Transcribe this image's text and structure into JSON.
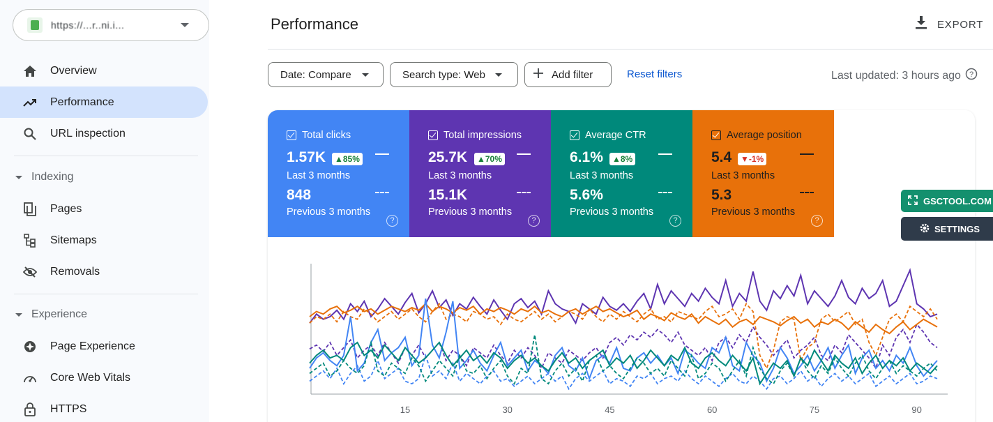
{
  "sidebar": {
    "property": {
      "url": "https://...r..ni.i..."
    },
    "items": [
      {
        "label": "Overview",
        "icon": "home-icon",
        "active": false
      },
      {
        "label": "Performance",
        "icon": "trending-icon",
        "active": true
      },
      {
        "label": "URL inspection",
        "icon": "search-icon",
        "active": false
      }
    ],
    "sections": [
      {
        "label": "Indexing",
        "items": [
          {
            "label": "Pages",
            "icon": "pages-icon"
          },
          {
            "label": "Sitemaps",
            "icon": "sitemap-icon"
          },
          {
            "label": "Removals",
            "icon": "removals-icon"
          }
        ]
      },
      {
        "label": "Experience",
        "items": [
          {
            "label": "Page Experience",
            "icon": "page-experience-icon"
          },
          {
            "label": "Core Web Vitals",
            "icon": "speedometer-icon"
          },
          {
            "label": "HTTPS",
            "icon": "lock-icon"
          }
        ]
      }
    ]
  },
  "header": {
    "title": "Performance",
    "export_label": "EXPORT"
  },
  "filters": {
    "date_label": "Date: Compare",
    "search_type_label": "Search type: Web",
    "add_filter_label": "Add filter",
    "reset_label": "Reset filters",
    "last_updated": "Last updated: 3 hours ago"
  },
  "metrics": [
    {
      "title": "Total clicks",
      "value": "1.57K",
      "change": "▲85%",
      "direction": "up",
      "period": "Last 3 months",
      "prev_value": "848",
      "prev_period": "Previous 3 months",
      "color": "#4285f4"
    },
    {
      "title": "Total impressions",
      "value": "25.7K",
      "change": "▲70%",
      "direction": "up",
      "period": "Last 3 months",
      "prev_value": "15.1K",
      "prev_period": "Previous 3 months",
      "color": "#5e35b1"
    },
    {
      "title": "Average CTR",
      "value": "6.1%",
      "change": "▲8%",
      "direction": "up",
      "period": "Last 3 months",
      "prev_value": "5.6%",
      "prev_period": "Previous 3 months",
      "color": "#00897b"
    },
    {
      "title": "Average position",
      "value": "5.4",
      "change": "▼-1%",
      "direction": "down",
      "period": "Last 3 months",
      "prev_value": "5.3",
      "prev_period": "Previous 3 months",
      "color": "#e8710a"
    }
  ],
  "extension": {
    "brand_label": "GSCTOOL.COM",
    "settings_label": "SETTINGS"
  },
  "chart_data": {
    "type": "line",
    "x_ticks": [
      15,
      30,
      45,
      60,
      75,
      90
    ],
    "xlim": [
      1,
      93
    ],
    "ylim": [
      0,
      100
    ],
    "grid": false,
    "series": [
      {
        "color": "#5e35b1",
        "style": "solid",
        "values": [
          55,
          62,
          58,
          60,
          65,
          58,
          70,
          64,
          72,
          60,
          66,
          74,
          68,
          62,
          71,
          78,
          63,
          70,
          80,
          67,
          73,
          61,
          70,
          66,
          75,
          68,
          62,
          73,
          65,
          58,
          70,
          74,
          67,
          72,
          62,
          80,
          70,
          66,
          64,
          55,
          70,
          66,
          62,
          75,
          68,
          65,
          70,
          64,
          72,
          78,
          66,
          85,
          70,
          80,
          74,
          68,
          78,
          72,
          82,
          75,
          70,
          88,
          68,
          78,
          72,
          95,
          72,
          65,
          80,
          74,
          84,
          76,
          92,
          70,
          80,
          74,
          68,
          76,
          88,
          75,
          70,
          82,
          74,
          78,
          88,
          68,
          72,
          84,
          96,
          70,
          66,
          60,
          62
        ]
      },
      {
        "color": "#5e35b1",
        "style": "dashed",
        "values": [
          35,
          38,
          33,
          40,
          30,
          36,
          42,
          28,
          34,
          38,
          30,
          40,
          32,
          24,
          36,
          30,
          38,
          28,
          34,
          40,
          26,
          34,
          30,
          22,
          36,
          32,
          28,
          38,
          30,
          24,
          34,
          28,
          36,
          30,
          20,
          32,
          28,
          24,
          34,
          30,
          26,
          32,
          36,
          28,
          40,
          44,
          38,
          46,
          42,
          48,
          44,
          50,
          46,
          40,
          48,
          38,
          34,
          30,
          36,
          26,
          40,
          44,
          36,
          46,
          40,
          52,
          44,
          38,
          30,
          36,
          42,
          28,
          34,
          38,
          44,
          30,
          26,
          38,
          32,
          46,
          40,
          34,
          28,
          20,
          38,
          30,
          44,
          50,
          40,
          54,
          48,
          40,
          36
        ]
      },
      {
        "color": "#e8710a",
        "style": "solid",
        "values": [
          60,
          64,
          62,
          66,
          68,
          63,
          65,
          68,
          64,
          66,
          62,
          65,
          68,
          66,
          64,
          67,
          65,
          70,
          64,
          68,
          66,
          63,
          67,
          65,
          68,
          62,
          66,
          64,
          67,
          65,
          62,
          66,
          64,
          68,
          63,
          65,
          62,
          60,
          64,
          66,
          62,
          65,
          68,
          64,
          66,
          63,
          60,
          62,
          65,
          58,
          62,
          60,
          57,
          63,
          60,
          58,
          62,
          55,
          60,
          57,
          54,
          58,
          52,
          56,
          58,
          54,
          60,
          58,
          56,
          53,
          57,
          60,
          55,
          58,
          52,
          56,
          54,
          58,
          55,
          50,
          56,
          52,
          48,
          54,
          50,
          47,
          52,
          56,
          50,
          54,
          58,
          55,
          52
        ]
      },
      {
        "color": "#e8710a",
        "style": "dashed",
        "values": [
          55,
          60,
          58,
          62,
          56,
          64,
          60,
          58,
          66,
          62,
          56,
          60,
          64,
          58,
          62,
          66,
          60,
          56,
          64,
          70,
          58,
          62,
          60,
          56,
          64,
          62,
          58,
          60,
          54,
          62,
          58,
          56,
          60,
          64,
          58,
          62,
          56,
          60,
          64,
          62,
          58,
          66,
          60,
          56,
          62,
          58,
          64,
          60,
          56,
          62,
          66,
          58,
          60,
          56,
          64,
          62,
          60,
          58,
          64,
          68,
          60,
          62,
          66,
          58,
          70,
          64,
          30,
          20,
          34,
          56,
          60,
          58,
          26,
          36,
          40,
          58,
          62,
          56,
          60,
          64,
          54,
          58,
          40,
          30,
          44,
          58,
          62,
          56,
          68,
          64,
          60,
          66,
          58
        ]
      },
      {
        "color": "#4285f4",
        "style": "solid",
        "values": [
          20,
          28,
          32,
          26,
          22,
          30,
          60,
          18,
          24,
          40,
          50,
          26,
          32,
          36,
          44,
          22,
          30,
          74,
          38,
          28,
          48,
          72,
          20,
          26,
          34,
          24,
          18,
          30,
          40,
          22,
          28,
          34,
          18,
          26,
          22,
          16,
          30,
          36,
          22,
          18,
          28,
          12,
          26,
          30,
          24,
          36,
          20,
          18,
          28,
          32,
          24,
          30,
          22,
          28,
          16,
          34,
          30,
          24,
          20,
          36,
          32,
          44,
          22,
          18,
          40,
          30,
          24,
          10,
          20,
          36,
          28,
          16,
          22,
          30,
          18,
          26,
          36,
          20,
          30,
          38,
          16,
          28,
          34,
          20,
          26,
          18,
          30,
          24,
          36,
          22,
          14,
          20,
          26
        ]
      },
      {
        "color": "#4285f4",
        "style": "dashed",
        "values": [
          10,
          14,
          18,
          12,
          20,
          8,
          16,
          22,
          10,
          14,
          26,
          12,
          16,
          20,
          10,
          8,
          12,
          30,
          14,
          18,
          12,
          24,
          10,
          16,
          12,
          8,
          14,
          18,
          10,
          12,
          6,
          10,
          14,
          8,
          12,
          16,
          10,
          14,
          4,
          12,
          16,
          10,
          14,
          18,
          8,
          12,
          10,
          6,
          14,
          12,
          16,
          8,
          12,
          14,
          10,
          18,
          12,
          8,
          14,
          10,
          6,
          12,
          16,
          10,
          8,
          14,
          10,
          4,
          12,
          14,
          8,
          12,
          18,
          10,
          14,
          6,
          12,
          16,
          10,
          14,
          8,
          12,
          16,
          6,
          10,
          14,
          8,
          12,
          16,
          8,
          10,
          14,
          12
        ]
      },
      {
        "color": "#00897b",
        "style": "solid",
        "values": [
          24,
          30,
          34,
          28,
          30,
          26,
          36,
          40,
          30,
          34,
          28,
          38,
          32,
          26,
          36,
          30,
          24,
          28,
          34,
          40,
          30,
          22,
          28,
          34,
          26,
          30,
          24,
          32,
          28,
          20,
          26,
          30,
          24,
          28,
          22,
          18,
          26,
          32,
          24,
          28,
          20,
          26,
          30,
          34,
          22,
          28,
          24,
          30,
          20,
          26,
          34,
          28,
          22,
          30,
          26,
          36,
          24,
          20,
          28,
          32,
          26,
          22,
          30,
          24,
          18,
          28,
          8,
          16,
          24,
          20,
          26,
          14,
          28,
          22,
          34,
          26,
          18,
          30,
          24,
          20,
          28,
          16,
          24,
          30,
          20,
          26,
          22,
          28,
          18,
          24,
          20,
          16,
          22
        ]
      },
      {
        "color": "#00897b",
        "style": "dashed",
        "values": [
          16,
          20,
          24,
          14,
          18,
          26,
          20,
          16,
          22,
          40,
          18,
          14,
          24,
          20,
          16,
          28,
          22,
          10,
          18,
          26,
          20,
          14,
          30,
          18,
          16,
          22,
          12,
          20,
          26,
          14,
          8,
          20,
          16,
          46,
          12,
          8,
          18,
          24,
          14,
          20,
          10,
          26,
          30,
          18,
          22,
          16,
          12,
          20,
          28,
          24,
          16,
          20,
          14,
          26,
          20,
          14,
          30,
          12,
          16,
          24,
          20,
          10,
          18,
          26,
          14,
          36,
          20,
          12,
          8,
          18,
          24,
          14,
          28,
          18,
          12,
          22,
          16,
          28,
          20,
          14,
          24,
          30,
          18,
          12,
          20,
          26,
          16,
          22,
          18,
          14,
          20,
          24,
          18
        ]
      }
    ]
  }
}
